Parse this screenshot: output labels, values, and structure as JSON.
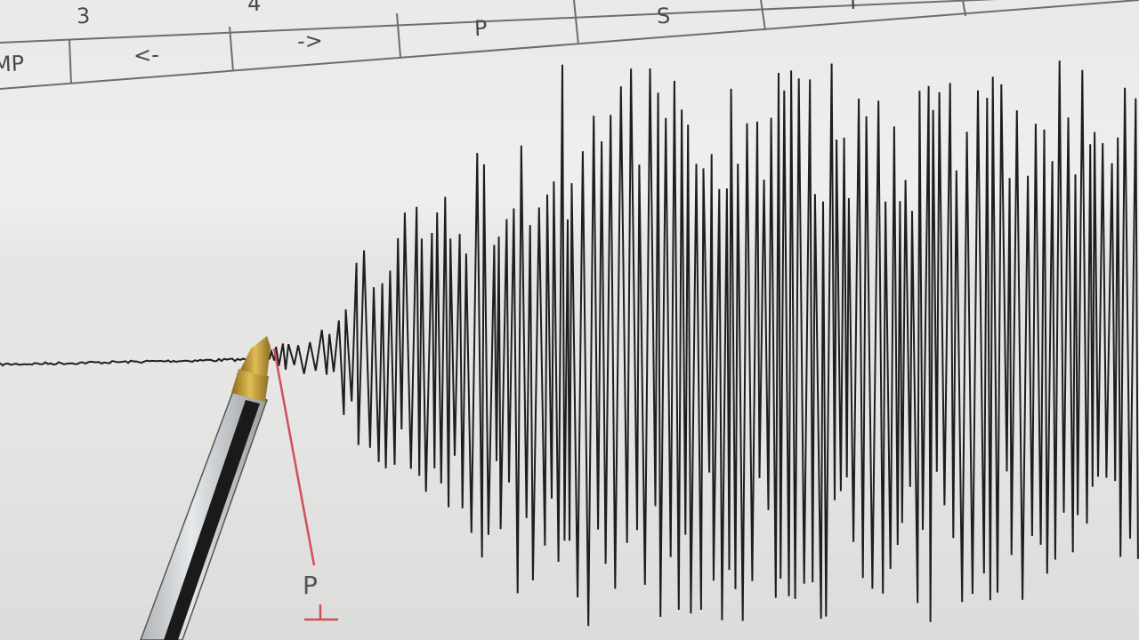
{
  "header_table": {
    "row1": [
      "3",
      "4",
      "S",
      "I"
    ],
    "row2": [
      "MP",
      "<-",
      "->",
      "P"
    ]
  },
  "annotation": {
    "label": "P",
    "color": "#d0505a"
  },
  "colors": {
    "paper": "#ebebe9",
    "trace": "#1e1e1e",
    "grid": "#6d6d6d",
    "pen_tip": "#c9a23a"
  }
}
